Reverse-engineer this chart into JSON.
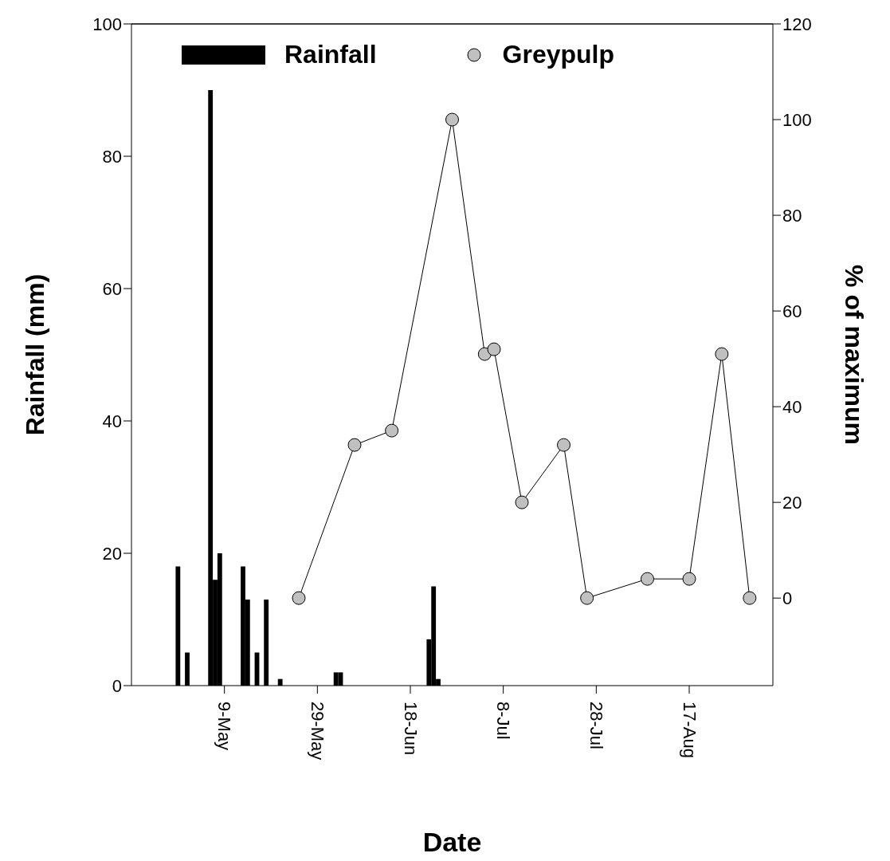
{
  "chart_data": {
    "type": "bar",
    "xlabel": "Date",
    "ylabel": "Rainfall (mm)",
    "y2label": "% of maximum",
    "xlim": [
      "--04-19",
      "--09-04"
    ],
    "xticks": [
      {
        "value": "--05-09",
        "label": "9-May"
      },
      {
        "value": "--05-29",
        "label": "29-May"
      },
      {
        "value": "--06-18",
        "label": "18-Jun"
      },
      {
        "value": "--07-08",
        "label": "8-Jul"
      },
      {
        "value": "--07-28",
        "label": "28-Jul"
      },
      {
        "value": "--08-17",
        "label": "17-Aug"
      }
    ],
    "ylim": [
      0,
      100
    ],
    "yticks": [
      0,
      20,
      40,
      60,
      80,
      100
    ],
    "y2lim": [
      -18.3,
      120
    ],
    "y2ticks": [
      0,
      20,
      40,
      60,
      80,
      100,
      120
    ],
    "legend": "top",
    "grid": false,
    "marker": "circle",
    "series": [
      {
        "name": "Rainfall",
        "color": "#000000",
        "x": [
          "--04-29",
          "--05-01",
          "--05-06",
          "--05-07",
          "--05-08",
          "--05-13",
          "--05-14",
          "--05-16",
          "--05-18",
          "--05-21",
          "--06-02",
          "--06-03",
          "--06-22",
          "--06-23",
          "--06-24"
        ],
        "values": [
          18,
          5,
          90,
          16,
          20,
          18,
          13,
          5,
          13,
          1,
          2,
          2,
          7,
          15,
          1
        ]
      },
      {
        "name": "Greypulp",
        "type": "line",
        "axis": "y2",
        "color": "#c0c0c0",
        "x": [
          "--05-25",
          "--06-06",
          "--06-14",
          "--06-27",
          "--07-04",
          "--07-06",
          "--07-12",
          "--07-21",
          "--07-26",
          "--08-08",
          "--08-17",
          "--08-24",
          "--08-30"
        ],
        "values": [
          0,
          32,
          35,
          100,
          51,
          52,
          20,
          32,
          0,
          4,
          4,
          51,
          0
        ]
      }
    ]
  }
}
